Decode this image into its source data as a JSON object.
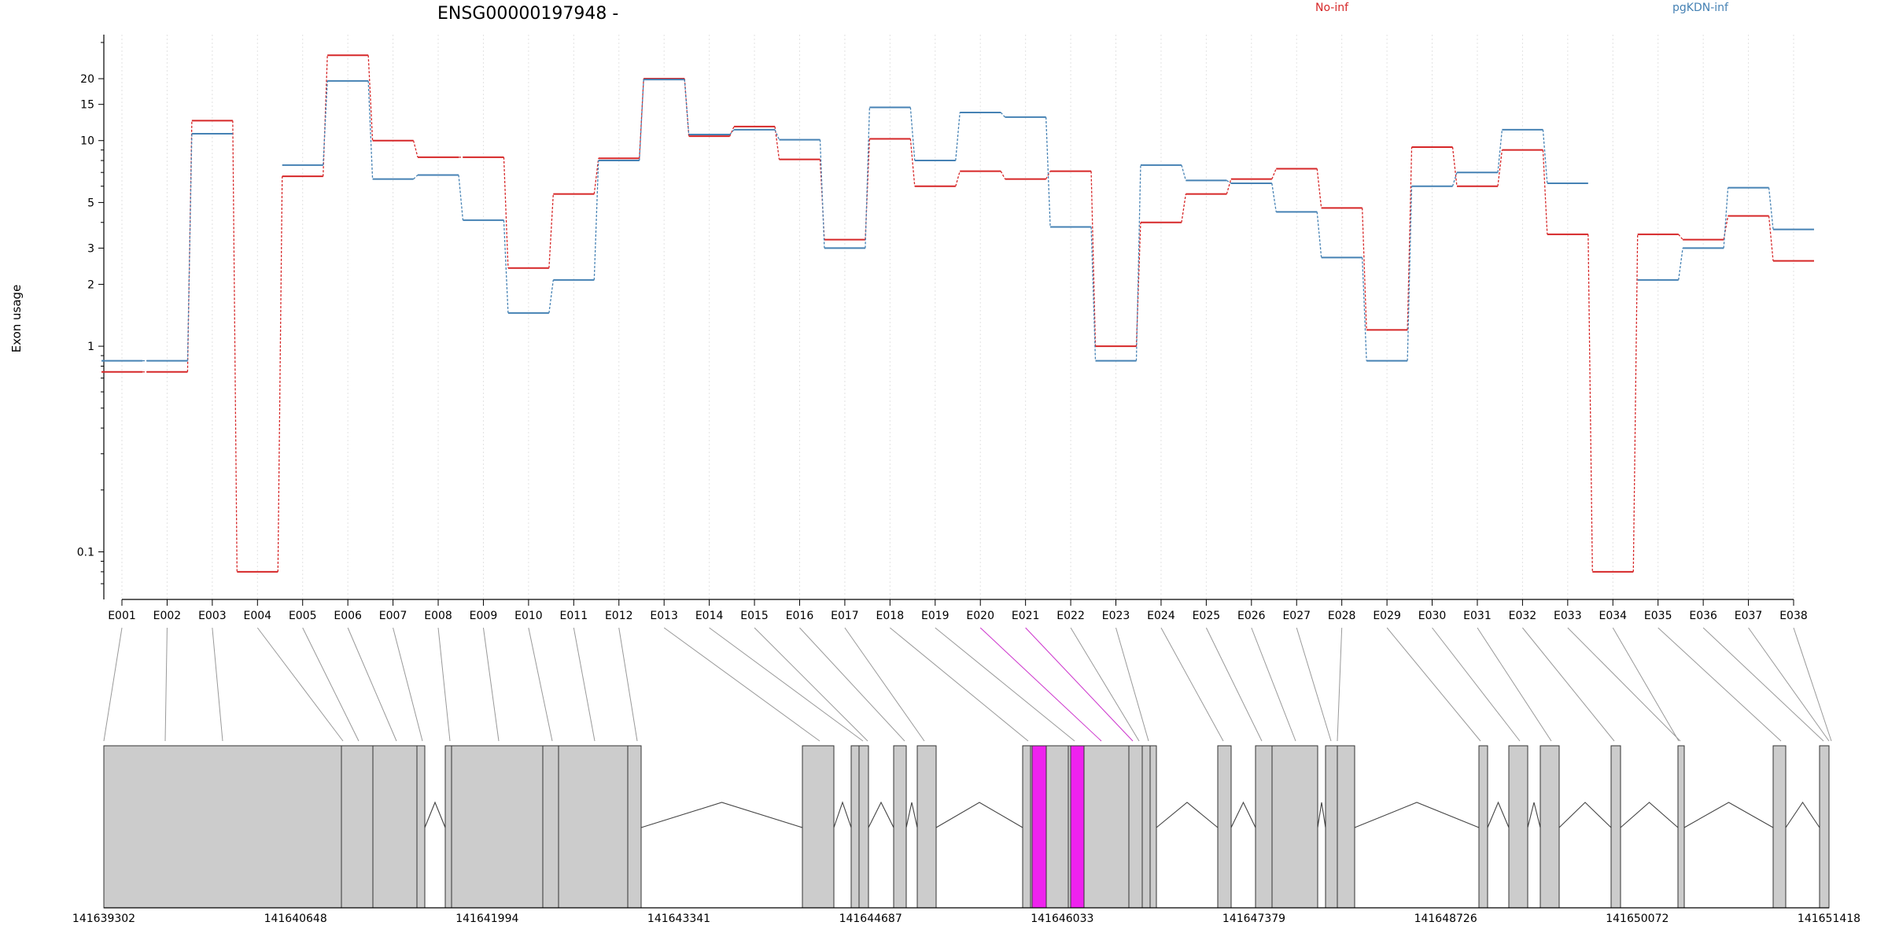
{
  "chart_data": {
    "type": "line",
    "title": "ENSG00000197948 -",
    "ylabel": "Exon usage",
    "y_scale": "log",
    "ylim": [
      0.07,
      30
    ],
    "y_ticks": [
      "0.1",
      "1",
      "2",
      "3",
      "5",
      "10",
      "15",
      "20"
    ],
    "grid": "vertical dotted lines at each exon",
    "legend_position": "top",
    "categories": [
      "E001",
      "E002",
      "E003",
      "E004",
      "E005",
      "E006",
      "E007",
      "E008",
      "E009",
      "E010",
      "E011",
      "E012",
      "E013",
      "E014",
      "E015",
      "E016",
      "E017",
      "E018",
      "E019",
      "E020",
      "E021",
      "E022",
      "E023",
      "E024",
      "E025",
      "E026",
      "E027",
      "E028",
      "E029",
      "E030",
      "E031",
      "E032",
      "E033",
      "E034",
      "E035",
      "E036",
      "E037",
      "E038"
    ],
    "highlighted_exons": [
      "E020",
      "E021"
    ],
    "series": [
      {
        "name": "No-inf",
        "color": "#d62728",
        "values": [
          0.75,
          0.75,
          12.5,
          0.08,
          6.7,
          26,
          10,
          8.3,
          8.3,
          2.4,
          5.5,
          8.2,
          20,
          10.5,
          11.7,
          8.1,
          3.3,
          10.2,
          6.0,
          7.1,
          6.5,
          7.1,
          1.0,
          4.0,
          5.5,
          6.5,
          7.3,
          4.7,
          1.2,
          9.3,
          6.0,
          9.0,
          3.5,
          0.08,
          3.5,
          3.3,
          4.3,
          2.6
        ]
      },
      {
        "name": "pgKDN-inf",
        "color": "#4682b4",
        "values": [
          0.85,
          0.85,
          10.8,
          null,
          7.6,
          19.5,
          6.5,
          6.8,
          4.1,
          1.45,
          2.1,
          8.0,
          19.8,
          10.7,
          11.3,
          10.1,
          3.0,
          14.5,
          8.0,
          13.7,
          13.0,
          3.8,
          0.85,
          7.6,
          6.4,
          6.2,
          4.5,
          2.7,
          0.85,
          6.0,
          7.0,
          11.3,
          6.2,
          null,
          2.1,
          3.0,
          5.9,
          3.7
        ]
      }
    ],
    "gene_model": {
      "coordinate_ticks": [
        "141639302",
        "141640648",
        "141641994",
        "141643341",
        "141644687",
        "141646033",
        "141647379",
        "141648726",
        "141650072",
        "141651418"
      ],
      "exon_color": "#cccccc",
      "highlight_color": "#ee22ee"
    }
  }
}
